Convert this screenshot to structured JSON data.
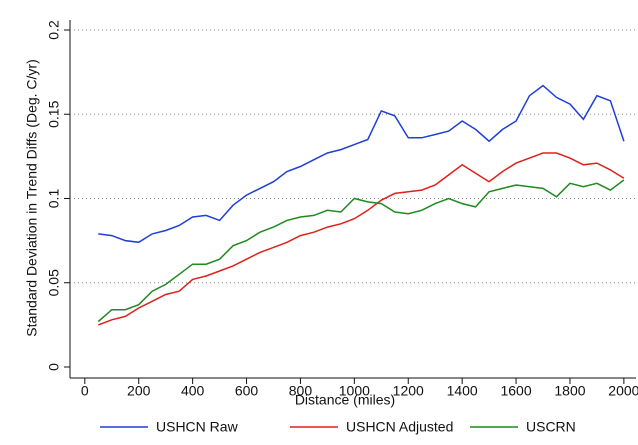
{
  "chart_data": {
    "type": "line",
    "xlabel": "Distance (miles)",
    "ylabel": "Standard Deviation in Trend Diffs (Deg. C/yr)",
    "x": [
      50,
      100,
      150,
      200,
      250,
      300,
      350,
      400,
      450,
      500,
      550,
      600,
      650,
      700,
      750,
      800,
      850,
      900,
      950,
      1000,
      1050,
      1100,
      1150,
      1200,
      1250,
      1300,
      1350,
      1400,
      1450,
      1500,
      1550,
      1600,
      1650,
      1700,
      1750,
      1800,
      1850,
      1900,
      1950,
      2000
    ],
    "series": [
      {
        "name": "USHCN Raw",
        "color": "#1f3fd6",
        "values": [
          0.079,
          0.078,
          0.075,
          0.074,
          0.079,
          0.081,
          0.084,
          0.089,
          0.09,
          0.087,
          0.096,
          0.102,
          0.106,
          0.11,
          0.116,
          0.119,
          0.123,
          0.127,
          0.129,
          0.132,
          0.135,
          0.152,
          0.149,
          0.136,
          0.136,
          0.138,
          0.14,
          0.146,
          0.141,
          0.134,
          0.141,
          0.146,
          0.161,
          0.167,
          0.16,
          0.156,
          0.147,
          0.161,
          0.158,
          0.134
        ]
      },
      {
        "name": "USHCN Adjusted",
        "color": "#e0201b",
        "values": [
          0.025,
          0.028,
          0.03,
          0.035,
          0.039,
          0.043,
          0.045,
          0.052,
          0.054,
          0.057,
          0.06,
          0.064,
          0.068,
          0.071,
          0.074,
          0.078,
          0.08,
          0.083,
          0.085,
          0.088,
          0.093,
          0.099,
          0.103,
          0.104,
          0.105,
          0.108,
          0.114,
          0.12,
          0.115,
          0.11,
          0.116,
          0.121,
          0.124,
          0.127,
          0.127,
          0.124,
          0.12,
          0.121,
          0.117,
          0.112
        ]
      },
      {
        "name": "USCRN",
        "color": "#1f8a1f",
        "values": [
          0.027,
          0.034,
          0.034,
          0.037,
          0.045,
          0.049,
          0.055,
          0.061,
          0.061,
          0.064,
          0.072,
          0.075,
          0.08,
          0.083,
          0.087,
          0.089,
          0.09,
          0.093,
          0.092,
          0.1,
          0.098,
          0.097,
          0.092,
          0.091,
          0.093,
          0.097,
          0.1,
          0.097,
          0.095,
          0.104,
          0.106,
          0.108,
          0.107,
          0.106,
          0.101,
          0.109,
          0.107,
          0.109,
          0.105,
          0.111
        ]
      }
    ],
    "xlim": [
      -55,
      2045
    ],
    "xticks": [
      0,
      200,
      400,
      600,
      800,
      1000,
      1200,
      1400,
      1600,
      1800,
      2000
    ],
    "ylim": [
      0,
      0.2
    ],
    "yticks": [
      0,
      0.05,
      0.1,
      0.15,
      0.2
    ],
    "grid": true
  }
}
